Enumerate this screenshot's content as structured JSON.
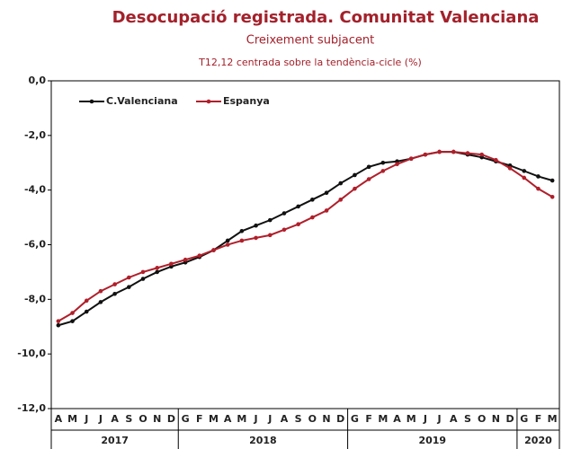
{
  "chart_data": {
    "type": "line",
    "title": "Desocupació registrada. Comunitat Valenciana",
    "subtitle": "Creixement subjacent",
    "note": "T12,12 centrada sobre la tendència-cicle (%)",
    "categories": [
      "A",
      "M",
      "J",
      "J",
      "A",
      "S",
      "O",
      "N",
      "D",
      "G",
      "F",
      "M",
      "A",
      "M",
      "J",
      "J",
      "A",
      "S",
      "O",
      "N",
      "D",
      "G",
      "F",
      "M",
      "A",
      "M",
      "J",
      "J",
      "A",
      "S",
      "O",
      "N",
      "D",
      "G",
      "F",
      "M"
    ],
    "years": [
      {
        "label": "2017",
        "months": 9
      },
      {
        "label": "2018",
        "months": 12
      },
      {
        "label": "2019",
        "months": 12
      },
      {
        "label": "2020",
        "months": 3
      }
    ],
    "series": [
      {
        "name": "C.Valenciana",
        "color": "#111111",
        "values": [
          -8.95,
          -8.8,
          -8.45,
          -8.1,
          -7.8,
          -7.55,
          -7.25,
          -7.0,
          -6.8,
          -6.65,
          -6.45,
          -6.2,
          -5.85,
          -5.5,
          -5.3,
          -5.1,
          -4.85,
          -4.6,
          -4.35,
          -4.1,
          -3.75,
          -3.45,
          -3.15,
          -3.0,
          -2.95,
          -2.85,
          -2.7,
          -2.6,
          -2.6,
          -2.7,
          -2.8,
          -2.95,
          -3.1,
          -3.3,
          -3.5,
          -3.65
        ]
      },
      {
        "name": "Espanya",
        "color": "#b01f2a",
        "values": [
          -8.8,
          -8.5,
          -8.05,
          -7.7,
          -7.45,
          -7.2,
          -7.0,
          -6.85,
          -6.7,
          -6.55,
          -6.4,
          -6.2,
          -6.0,
          -5.85,
          -5.75,
          -5.65,
          -5.45,
          -5.25,
          -5.0,
          -4.75,
          -4.35,
          -3.95,
          -3.6,
          -3.3,
          -3.05,
          -2.85,
          -2.7,
          -2.6,
          -2.6,
          -2.65,
          -2.7,
          -2.9,
          -3.2,
          -3.55,
          -3.95,
          -4.25
        ]
      }
    ],
    "ylim": [
      -12,
      0
    ],
    "yticks": [
      {
        "value": 0,
        "label": "0,0"
      },
      {
        "value": -2,
        "label": "-2,0"
      },
      {
        "value": -4,
        "label": "-4,0"
      },
      {
        "value": -6,
        "label": "-6,0"
      },
      {
        "value": -8,
        "label": "-8,0"
      },
      {
        "value": -10,
        "label": "-10,0"
      },
      {
        "value": -12,
        "label": "-12,0"
      }
    ]
  }
}
